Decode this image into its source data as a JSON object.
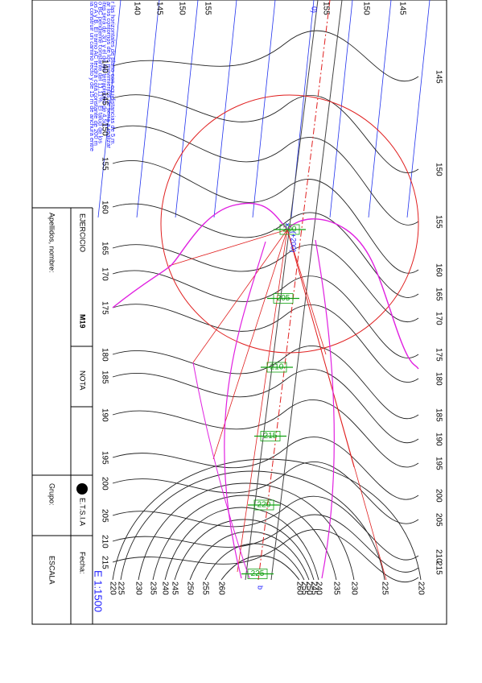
{
  "statement": [
    "ia construir un camino recto y de 15 m de anchura entre",
    "os A y B. El tramo AC tendrá cota constante de 200 m",
    "o BC pendiente constante del 11,11%. El talud de los",
    "ites será de 3/1 y el de los terraplenes de 4,5/1.",
    "ar los contornos de los movimientos de tierra a realizar",
    "r las horizontales de plano con equidistancias de 5 m."
  ],
  "title_block": {
    "exercise_label": "EJERCICIO",
    "exercise": "M19",
    "grade_label": "NOTA",
    "school": "E.T.S.I.A",
    "date_label": "Fecha:",
    "name_label": "Apellidos, nombre:",
    "group_label": "Grupo:",
    "scale_label": "ESCALA",
    "scale": "E 1:1500"
  },
  "contour_labels": {
    "top": [
      "140",
      "145",
      "150",
      "155",
      "155",
      "150",
      "145"
    ],
    "left": [
      "140",
      "145",
      "150",
      "155",
      "160",
      "165",
      "170",
      "175",
      "180",
      "185",
      "190",
      "195",
      "200",
      "205",
      "210",
      "215"
    ],
    "right": [
      "145",
      "150",
      "155",
      "160",
      "165",
      "170",
      "175",
      "180",
      "185",
      "190",
      "195",
      "200",
      "205",
      "210",
      "215"
    ],
    "bottom_left": [
      "220",
      "225",
      "230",
      "235",
      "240",
      "245",
      "250",
      "255",
      "260"
    ],
    "bottom_right": [
      "260",
      "255",
      "250",
      "245",
      "240",
      "235",
      "230",
      "225",
      "220"
    ]
  },
  "road_labels": [
    "200",
    "205",
    "210",
    "215",
    "220",
    "225"
  ],
  "annotations": {
    "elevation": "(+200)",
    "point_a": "0)",
    "point_b": "b"
  }
}
